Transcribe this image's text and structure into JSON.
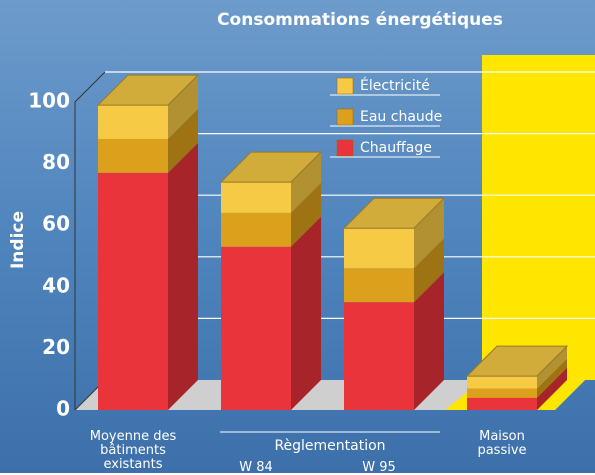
{
  "chart_data": {
    "type": "bar",
    "stacked": true,
    "title": "Consommations énergétiques",
    "ylabel": "Indice",
    "group_label": "Règlementation",
    "categories": [
      "Moyenne des bâtiments existants",
      "W 84",
      "W 95",
      "Maison passive"
    ],
    "series": [
      {
        "name": "Chauffage",
        "color": "#e8343a",
        "values": [
          77,
          53,
          35,
          4
        ]
      },
      {
        "name": "Eau chaude",
        "color": "#dba01c",
        "values": [
          11,
          11,
          11,
          3
        ]
      },
      {
        "name": "Électricité",
        "color": "#f6ca45",
        "values": [
          11,
          10,
          13,
          4
        ]
      }
    ],
    "ylim": [
      0,
      100
    ],
    "yticks": [
      0,
      20,
      40,
      60,
      80,
      100
    ],
    "grid": true
  }
}
